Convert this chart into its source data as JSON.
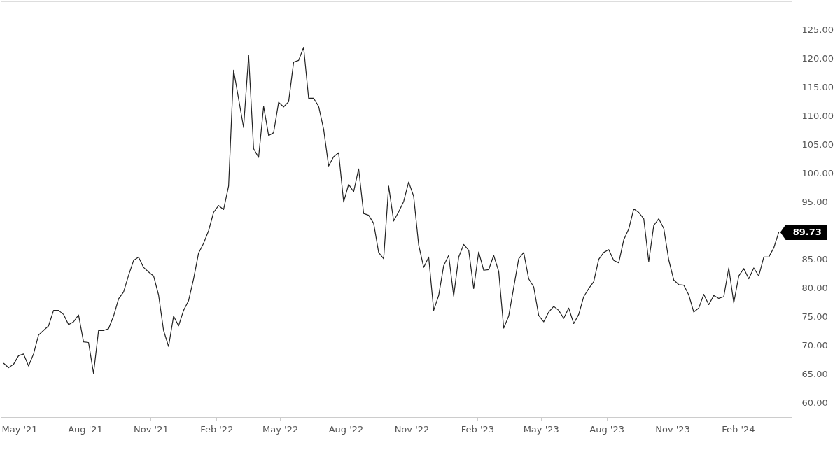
{
  "chart_data": {
    "type": "line",
    "x": [
      "2021-04-09",
      "2021-04-16",
      "2021-04-23",
      "2021-04-30",
      "2021-05-07",
      "2021-05-14",
      "2021-05-21",
      "2021-05-28",
      "2021-06-04",
      "2021-06-11",
      "2021-06-18",
      "2021-06-25",
      "2021-07-02",
      "2021-07-09",
      "2021-07-16",
      "2021-07-23",
      "2021-07-30",
      "2021-08-06",
      "2021-08-13",
      "2021-08-20",
      "2021-08-27",
      "2021-09-03",
      "2021-09-10",
      "2021-09-17",
      "2021-09-24",
      "2021-10-01",
      "2021-10-08",
      "2021-10-15",
      "2021-10-22",
      "2021-10-29",
      "2021-11-05",
      "2021-11-12",
      "2021-11-19",
      "2021-11-26",
      "2021-12-03",
      "2021-12-10",
      "2021-12-17",
      "2021-12-24",
      "2021-12-31",
      "2022-01-07",
      "2022-01-14",
      "2022-01-21",
      "2022-01-28",
      "2022-02-04",
      "2022-02-11",
      "2022-02-18",
      "2022-02-25",
      "2022-03-04",
      "2022-03-11",
      "2022-03-18",
      "2022-03-25",
      "2022-04-01",
      "2022-04-08",
      "2022-04-15",
      "2022-04-22",
      "2022-04-29",
      "2022-05-06",
      "2022-05-13",
      "2022-05-20",
      "2022-05-27",
      "2022-06-03",
      "2022-06-10",
      "2022-06-17",
      "2022-06-24",
      "2022-07-01",
      "2022-07-08",
      "2022-07-15",
      "2022-07-22",
      "2022-07-29",
      "2022-08-05",
      "2022-08-12",
      "2022-08-19",
      "2022-08-26",
      "2022-09-02",
      "2022-09-09",
      "2022-09-16",
      "2022-09-23",
      "2022-09-30",
      "2022-10-07",
      "2022-10-14",
      "2022-10-21",
      "2022-10-28",
      "2022-11-04",
      "2022-11-11",
      "2022-11-18",
      "2022-11-25",
      "2022-12-02",
      "2022-12-09",
      "2022-12-16",
      "2022-12-23",
      "2022-12-30",
      "2023-01-06",
      "2023-01-13",
      "2023-01-20",
      "2023-01-27",
      "2023-02-03",
      "2023-02-10",
      "2023-02-17",
      "2023-02-24",
      "2023-03-03",
      "2023-03-10",
      "2023-03-17",
      "2023-03-24",
      "2023-03-31",
      "2023-04-07",
      "2023-04-14",
      "2023-04-21",
      "2023-04-28",
      "2023-05-05",
      "2023-05-12",
      "2023-05-19",
      "2023-05-26",
      "2023-06-02",
      "2023-06-09",
      "2023-06-16",
      "2023-06-23",
      "2023-06-30",
      "2023-07-07",
      "2023-07-14",
      "2023-07-21",
      "2023-07-28",
      "2023-08-04",
      "2023-08-11",
      "2023-08-18",
      "2023-08-25",
      "2023-09-01",
      "2023-09-08",
      "2023-09-15",
      "2023-09-22",
      "2023-09-29",
      "2023-10-06",
      "2023-10-13",
      "2023-10-20",
      "2023-10-27",
      "2023-11-03",
      "2023-11-10",
      "2023-11-17",
      "2023-11-24",
      "2023-12-01",
      "2023-12-08",
      "2023-12-15",
      "2023-12-22",
      "2023-12-29",
      "2024-01-05",
      "2024-01-12",
      "2024-01-19",
      "2024-01-26",
      "2024-02-02",
      "2024-02-09",
      "2024-02-16",
      "2024-02-23",
      "2024-03-01",
      "2024-03-08",
      "2024-03-15",
      "2024-03-22",
      "2024-03-29"
    ],
    "series": [
      {
        "color": "#222222",
        "values": [
          66.9,
          66.1,
          66.7,
          68.2,
          68.5,
          66.4,
          68.5,
          71.8,
          72.6,
          73.4,
          76.1,
          76.1,
          75.4,
          73.6,
          74.1,
          75.3,
          70.6,
          70.5,
          65.1,
          72.6,
          72.6,
          72.9,
          75.1,
          78.1,
          79.3,
          82.2,
          84.8,
          85.4,
          83.6,
          82.8,
          82.1,
          78.8,
          72.6,
          69.8,
          75.1,
          73.4,
          76.1,
          77.8,
          81.6,
          86.1,
          87.8,
          90.0,
          93.2,
          94.4,
          93.7,
          97.8,
          118.0,
          113.0,
          108.0,
          120.6,
          104.3,
          102.8,
          111.7,
          106.6,
          107.1,
          112.4,
          111.6,
          112.5,
          119.4,
          119.7,
          122.0,
          113.1,
          113.1,
          111.7,
          107.7,
          101.3,
          102.9,
          103.6,
          95.0,
          98.1,
          96.8,
          100.8,
          93.0,
          92.7,
          91.3,
          86.2,
          85.1,
          97.8,
          91.7,
          93.3,
          95.1,
          98.5,
          96.0,
          87.5,
          83.6,
          85.4,
          76.1,
          78.7,
          83.9,
          85.7,
          78.6,
          85.4,
          87.6,
          86.6,
          79.9,
          86.3,
          83.1,
          83.2,
          85.7,
          82.9,
          73.0,
          75.1,
          80.1,
          85.1,
          86.2,
          81.6,
          80.2,
          75.2,
          74.1,
          75.8,
          76.8,
          76.1,
          74.7,
          76.5,
          73.8,
          75.4,
          78.5,
          79.9,
          81.1,
          85.0,
          86.2,
          86.7,
          84.8,
          84.4,
          88.4,
          90.3,
          93.8,
          93.2,
          92.1,
          84.6,
          90.9,
          92.1,
          90.4,
          84.9,
          81.4,
          80.6,
          80.5,
          78.8,
          75.8,
          76.5,
          78.9,
          77.1,
          78.7,
          78.2,
          78.5,
          83.5,
          77.4,
          82.1,
          83.4,
          81.6,
          83.5,
          82.1,
          85.4,
          85.4,
          87.0,
          89.73
        ]
      }
    ],
    "xlim": [
      "2021-04-05",
      "2024-04-16"
    ],
    "xticks": [
      {
        "value": "2021-05-01",
        "label": "May '21"
      },
      {
        "value": "2021-08-01",
        "label": "Aug '21"
      },
      {
        "value": "2021-11-01",
        "label": "Nov '21"
      },
      {
        "value": "2022-02-01",
        "label": "Feb '22"
      },
      {
        "value": "2022-05-01",
        "label": "May '22"
      },
      {
        "value": "2022-08-01",
        "label": "Aug '22"
      },
      {
        "value": "2022-11-01",
        "label": "Nov '22"
      },
      {
        "value": "2023-02-01",
        "label": "Feb '23"
      },
      {
        "value": "2023-05-01",
        "label": "May '23"
      },
      {
        "value": "2023-08-01",
        "label": "Aug '23"
      },
      {
        "value": "2023-11-01",
        "label": "Nov '23"
      },
      {
        "value": "2024-02-01",
        "label": "Feb '24"
      }
    ],
    "ylim": [
      57.5,
      130
    ],
    "yticks": [
      {
        "value": 60,
        "label": "60.00"
      },
      {
        "value": 65,
        "label": "65.00"
      },
      {
        "value": 70,
        "label": "70.00"
      },
      {
        "value": 75,
        "label": "75.00"
      },
      {
        "value": 80,
        "label": "80.00"
      },
      {
        "value": 85,
        "label": "85.00"
      },
      {
        "value": 95,
        "label": "95.00"
      },
      {
        "value": 100,
        "label": "100.00"
      },
      {
        "value": 105,
        "label": "105.00"
      },
      {
        "value": 110,
        "label": "110.00"
      },
      {
        "value": 115,
        "label": "115.00"
      },
      {
        "value": 120,
        "label": "120.00"
      },
      {
        "value": 125,
        "label": "125.00"
      }
    ],
    "annotations": [
      {
        "text": "89.73",
        "x": "2024-03-29",
        "y": 89.73
      }
    ],
    "grid": false
  }
}
